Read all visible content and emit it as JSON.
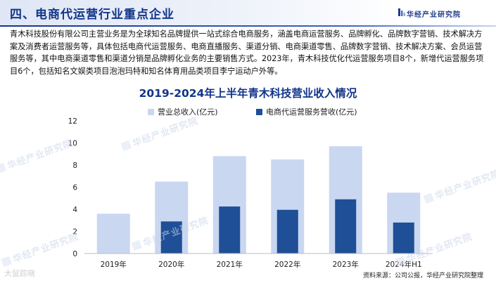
{
  "header": {
    "section_title": "四、电商代运营行业重点企业",
    "brand": "华经产业研究院"
  },
  "paragraph": "青木科技股份有限公司主营业务是为全球知名品牌提供一站式综合电商服务，涵盖电商运营服务、品牌孵化、品牌数字营销、技术解决方案及消费者运营服务等，具体包括电商代运营服务、电商直播服务、渠道分销、电商渠道零售、品牌数字营销、技术解决方案、会员运营服务等，其中电商渠道零售和渠道分销是品牌孵化业务的主要销售方式。2023年，青木科技优化代运营服务项目8个，新增代运营服务项目6个，包括知名文娱类项目泡泡玛特和知名体育用品类项目李宁运动户外等。",
  "watermark": "华经产业研究院",
  "corner_mark": "大鼠踪晓",
  "source": "资料来源：公司公报，华经产业研究院整理",
  "colors": {
    "light_bar": "#c9d7f1",
    "dark_bar": "#1f4f96",
    "title": "#12358a"
  },
  "chart_data": {
    "type": "bar",
    "title": "2019-2024年上半年青木科技营业收入情况",
    "categories": [
      "2019年",
      "2020年",
      "2021年",
      "2022年",
      "2023年",
      "2024年H1"
    ],
    "series": [
      {
        "name": "营业总收入(亿元)",
        "values": [
          3.6,
          6.5,
          8.8,
          8.5,
          9.7,
          5.5
        ]
      },
      {
        "name": "电商代运营服务营收(亿元)",
        "values": [
          null,
          2.9,
          4.25,
          3.95,
          4.9,
          2.8
        ]
      }
    ],
    "ylim": [
      0,
      12
    ],
    "yticks": [
      0,
      2,
      4,
      6,
      8,
      10,
      12
    ],
    "grid": false,
    "legend": "top"
  }
}
